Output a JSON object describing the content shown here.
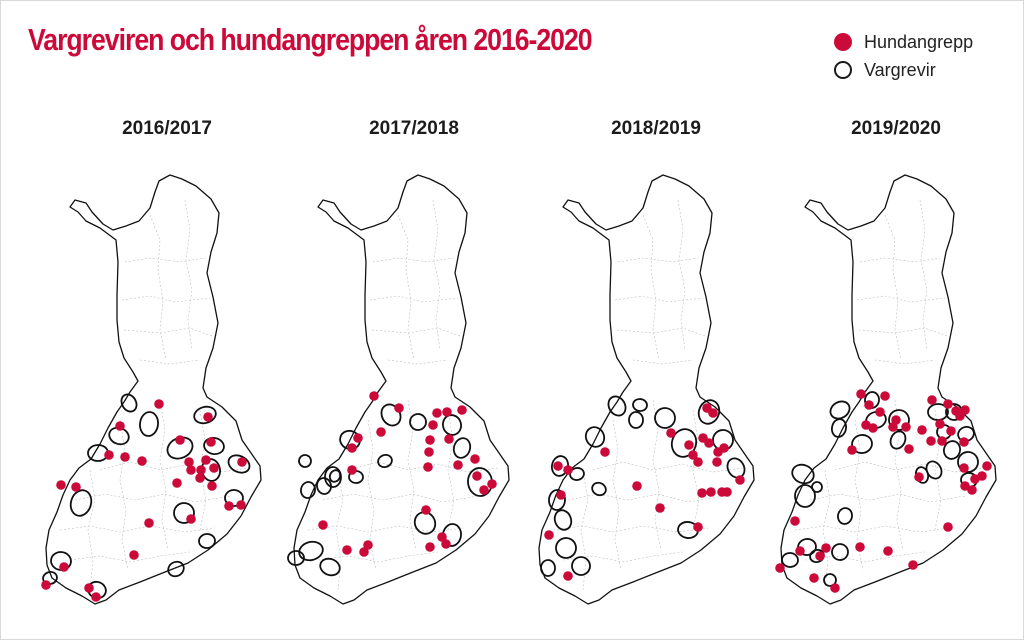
{
  "title": "Vargreviren och hundangreppen åren 2016-2020",
  "legend": {
    "attack_label": "Hundangrepp",
    "territory_label": "Vargrevir"
  },
  "colors": {
    "attack": "#cc0a3a",
    "territory_stroke": "#111111",
    "outline": "#111111",
    "municipal_lines": "#bdbdbd",
    "title": "#cc0a3a"
  },
  "panels": [
    {
      "season": "2016/2017",
      "attacks": [
        [
          159,
          404
        ],
        [
          208,
          417
        ],
        [
          120,
          426
        ],
        [
          180,
          440
        ],
        [
          211,
          442
        ],
        [
          125,
          457
        ],
        [
          109,
          455
        ],
        [
          142,
          461
        ],
        [
          189,
          462
        ],
        [
          206,
          460
        ],
        [
          191,
          470
        ],
        [
          201,
          470
        ],
        [
          214,
          468
        ],
        [
          242,
          462
        ],
        [
          177,
          483
        ],
        [
          212,
          486
        ],
        [
          61,
          485
        ],
        [
          76,
          487
        ],
        [
          200,
          478
        ],
        [
          241,
          505
        ],
        [
          229,
          506
        ],
        [
          191,
          519
        ],
        [
          149,
          523
        ],
        [
          134,
          555
        ],
        [
          64,
          567
        ],
        [
          89,
          588
        ],
        [
          96,
          597
        ],
        [
          46,
          585
        ]
      ],
      "territories": [
        [
          129,
          403,
          7,
          9
        ],
        [
          149,
          424,
          9,
          12
        ],
        [
          205,
          415,
          11,
          8
        ],
        [
          119,
          436,
          10,
          8
        ],
        [
          98,
          453,
          10,
          8
        ],
        [
          180,
          448,
          13,
          10
        ],
        [
          214,
          446,
          10,
          8
        ],
        [
          211,
          470,
          9,
          11
        ],
        [
          239,
          464,
          11,
          8
        ],
        [
          234,
          498,
          9,
          8
        ],
        [
          184,
          513,
          10,
          10
        ],
        [
          81,
          503,
          10,
          13
        ],
        [
          207,
          541,
          8,
          7
        ],
        [
          176,
          569,
          8,
          7
        ],
        [
          61,
          561,
          10,
          9
        ],
        [
          50,
          578,
          7,
          6
        ],
        [
          97,
          590,
          9,
          8
        ]
      ]
    },
    {
      "season": "2017/2018",
      "attacks": [
        [
          374,
          396
        ],
        [
          399,
          408
        ],
        [
          437,
          413
        ],
        [
          447,
          412
        ],
        [
          462,
          410
        ],
        [
          433,
          425
        ],
        [
          430,
          440
        ],
        [
          449,
          439
        ],
        [
          381,
          432
        ],
        [
          358,
          438
        ],
        [
          352,
          448
        ],
        [
          429,
          452
        ],
        [
          458,
          465
        ],
        [
          475,
          459
        ],
        [
          477,
          476
        ],
        [
          352,
          470
        ],
        [
          428,
          467
        ],
        [
          484,
          490
        ],
        [
          492,
          484
        ],
        [
          426,
          510
        ],
        [
          323,
          525
        ],
        [
          442,
          537
        ],
        [
          446,
          544
        ],
        [
          430,
          547
        ],
        [
          368,
          545
        ],
        [
          364,
          552
        ],
        [
          347,
          550
        ]
      ],
      "territories": [
        [
          391,
          415,
          9,
          11
        ],
        [
          418,
          422,
          8,
          8
        ],
        [
          452,
          425,
          9,
          10
        ],
        [
          350,
          440,
          10,
          9
        ],
        [
          333,
          477,
          8,
          10
        ],
        [
          305,
          461,
          6,
          6
        ],
        [
          308,
          490,
          7,
          8
        ],
        [
          324,
          486,
          7,
          8
        ],
        [
          335,
          476,
          5,
          6
        ],
        [
          356,
          477,
          7,
          6
        ],
        [
          385,
          461,
          7,
          6
        ],
        [
          462,
          448,
          8,
          10
        ],
        [
          480,
          482,
          12,
          14
        ],
        [
          425,
          523,
          10,
          11
        ],
        [
          452,
          535,
          9,
          11
        ],
        [
          311,
          551,
          12,
          9
        ],
        [
          330,
          567,
          10,
          8
        ],
        [
          296,
          558,
          8,
          7
        ]
      ]
    },
    {
      "season": "2018/2019",
      "attacks": [
        [
          707,
          408
        ],
        [
          713,
          413
        ],
        [
          671,
          433
        ],
        [
          703,
          438
        ],
        [
          689,
          445
        ],
        [
          709,
          443
        ],
        [
          693,
          455
        ],
        [
          718,
          452
        ],
        [
          724,
          448
        ],
        [
          698,
          462
        ],
        [
          717,
          462
        ],
        [
          558,
          466
        ],
        [
          568,
          470
        ],
        [
          605,
          452
        ],
        [
          637,
          486
        ],
        [
          561,
          495
        ],
        [
          711,
          492
        ],
        [
          722,
          492
        ],
        [
          727,
          492
        ],
        [
          702,
          493
        ],
        [
          660,
          508
        ],
        [
          698,
          527
        ],
        [
          568,
          576
        ],
        [
          549,
          535
        ],
        [
          740,
          480
        ]
      ],
      "territories": [
        [
          617,
          406,
          8,
          10
        ],
        [
          640,
          405,
          7,
          6
        ],
        [
          665,
          418,
          10,
          10
        ],
        [
          709,
          412,
          10,
          12
        ],
        [
          636,
          420,
          7,
          8
        ],
        [
          595,
          437,
          9,
          10
        ],
        [
          560,
          466,
          8,
          10
        ],
        [
          577,
          474,
          7,
          6
        ],
        [
          599,
          489,
          7,
          6
        ],
        [
          557,
          500,
          8,
          10
        ],
        [
          563,
          520,
          8,
          10
        ],
        [
          684,
          443,
          12,
          14
        ],
        [
          723,
          440,
          10,
          10
        ],
        [
          736,
          468,
          8,
          10
        ],
        [
          688,
          530,
          10,
          8
        ],
        [
          566,
          548,
          10,
          10
        ],
        [
          581,
          566,
          9,
          9
        ],
        [
          548,
          568,
          7,
          8
        ]
      ]
    },
    {
      "season": "2019/2020",
      "attacks": [
        [
          861,
          394
        ],
        [
          869,
          405
        ],
        [
          880,
          412
        ],
        [
          885,
          396
        ],
        [
          932,
          400
        ],
        [
          948,
          404
        ],
        [
          956,
          411
        ],
        [
          960,
          416
        ],
        [
          965,
          410
        ],
        [
          940,
          424
        ],
        [
          873,
          428
        ],
        [
          896,
          420
        ],
        [
          893,
          427
        ],
        [
          906,
          427
        ],
        [
          866,
          425
        ],
        [
          922,
          430
        ],
        [
          951,
          431
        ],
        [
          931,
          441
        ],
        [
          942,
          441
        ],
        [
          964,
          442
        ],
        [
          909,
          449
        ],
        [
          852,
          450
        ],
        [
          964,
          468
        ],
        [
          987,
          466
        ],
        [
          982,
          476
        ],
        [
          975,
          479
        ],
        [
          965,
          486
        ],
        [
          972,
          490
        ],
        [
          919,
          477
        ],
        [
          948,
          527
        ],
        [
          860,
          547
        ],
        [
          888,
          551
        ],
        [
          795,
          521
        ],
        [
          913,
          565
        ],
        [
          800,
          551
        ],
        [
          826,
          548
        ],
        [
          820,
          556
        ],
        [
          780,
          568
        ],
        [
          835,
          588
        ],
        [
          814,
          578
        ]
      ],
      "territories": [
        [
          840,
          410,
          10,
          8
        ],
        [
          872,
          400,
          7,
          8
        ],
        [
          876,
          420,
          10,
          8
        ],
        [
          899,
          420,
          10,
          10
        ],
        [
          938,
          412,
          10,
          8
        ],
        [
          954,
          412,
          8,
          8
        ],
        [
          839,
          428,
          7,
          9
        ],
        [
          862,
          444,
          10,
          9
        ],
        [
          898,
          440,
          7,
          9
        ],
        [
          944,
          432,
          7,
          7
        ],
        [
          966,
          434,
          8,
          7
        ],
        [
          952,
          450,
          8,
          9
        ],
        [
          968,
          462,
          10,
          10
        ],
        [
          934,
          470,
          7,
          9
        ],
        [
          969,
          480,
          8,
          7
        ],
        [
          922,
          475,
          6,
          8
        ],
        [
          803,
          474,
          11,
          9
        ],
        [
          805,
          496,
          10,
          11
        ],
        [
          817,
          487,
          5,
          5
        ],
        [
          845,
          516,
          7,
          8
        ],
        [
          807,
          547,
          9,
          8
        ],
        [
          840,
          552,
          8,
          8
        ],
        [
          790,
          560,
          8,
          7
        ],
        [
          817,
          556,
          7,
          6
        ],
        [
          830,
          580,
          6,
          6
        ]
      ]
    }
  ]
}
